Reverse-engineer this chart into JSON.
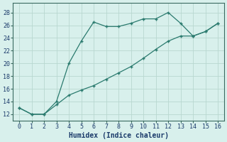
{
  "x": [
    0,
    1,
    2,
    3,
    4,
    5,
    6,
    7,
    8,
    9,
    10,
    11,
    12,
    13,
    14,
    15,
    16
  ],
  "line1": [
    13,
    12,
    12,
    14,
    20,
    23.5,
    26.5,
    25.8,
    25.8,
    26.3,
    27,
    27,
    28,
    26.3,
    24.3,
    25,
    26.3
  ],
  "line2": [
    13,
    12,
    12,
    13.5,
    15.0,
    15.8,
    16.5,
    17.5,
    18.5,
    19.5,
    20.8,
    22.2,
    23.5,
    24.3,
    24.3,
    25.0,
    26.3
  ],
  "line_color": "#2a7a6e",
  "bg_color": "#d8f0ec",
  "grid_color": "#b8d8d0",
  "xlabel": "Humidex (Indice chaleur)",
  "ylabel_ticks": [
    12,
    14,
    16,
    18,
    20,
    22,
    24,
    26,
    28
  ],
  "xlim": [
    -0.5,
    16.5
  ],
  "ylim": [
    11,
    29.5
  ],
  "xticks": [
    0,
    1,
    2,
    3,
    4,
    5,
    6,
    7,
    8,
    9,
    10,
    11,
    12,
    13,
    14,
    15,
    16
  ],
  "axis_fontsize": 6.5,
  "tick_fontsize": 6.0,
  "xlabel_fontsize": 7.0
}
